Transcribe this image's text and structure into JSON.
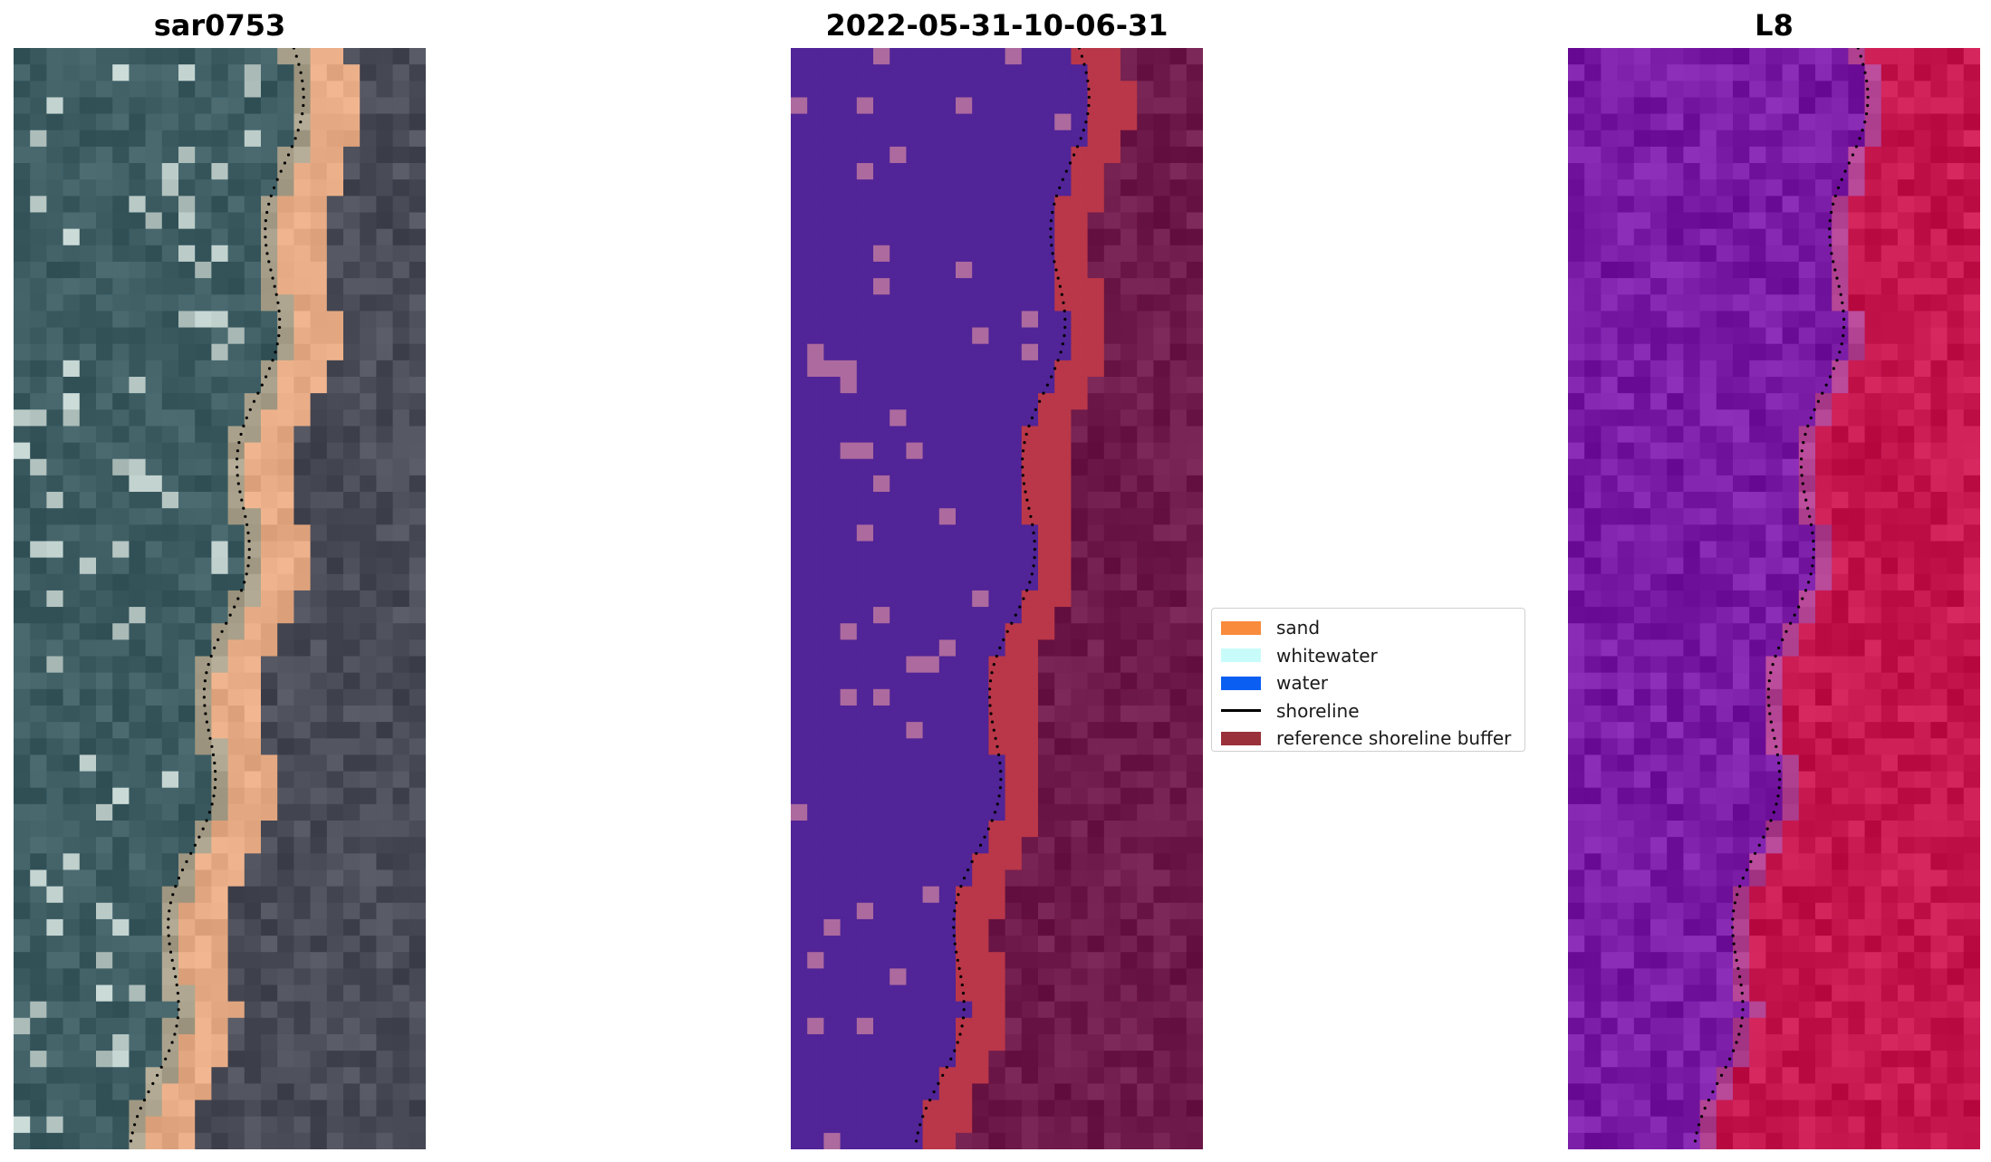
{
  "panels": [
    {
      "title": "sar0753",
      "kind": "rgb"
    },
    {
      "title": "2022-05-31-10-06-31",
      "kind": "classified"
    },
    {
      "title": "L8",
      "kind": "index"
    }
  ],
  "legend": {
    "items": [
      {
        "label": "sand",
        "color": "#f98b3c",
        "style": "patch"
      },
      {
        "label": "whitewater",
        "color": "#c8fcfa",
        "style": "patch"
      },
      {
        "label": "water",
        "color": "#0a5ff2",
        "style": "patch"
      },
      {
        "label": "shoreline",
        "color": "#000000",
        "style": "line"
      },
      {
        "label": "reference shoreline buffer",
        "color": "#9a3039",
        "style": "patch"
      }
    ]
  },
  "colors": {
    "rgb_water": "#3d5d63",
    "rgb_sand": "#e6ab85",
    "rgb_land": "#4a4c58",
    "class_water": "#512497",
    "class_foam": "#ad6a9e",
    "class_buffer": "#b93748",
    "class_land": "#6f1b4b",
    "index_water": "#7a1ca6",
    "index_land": "#c6174f"
  }
}
